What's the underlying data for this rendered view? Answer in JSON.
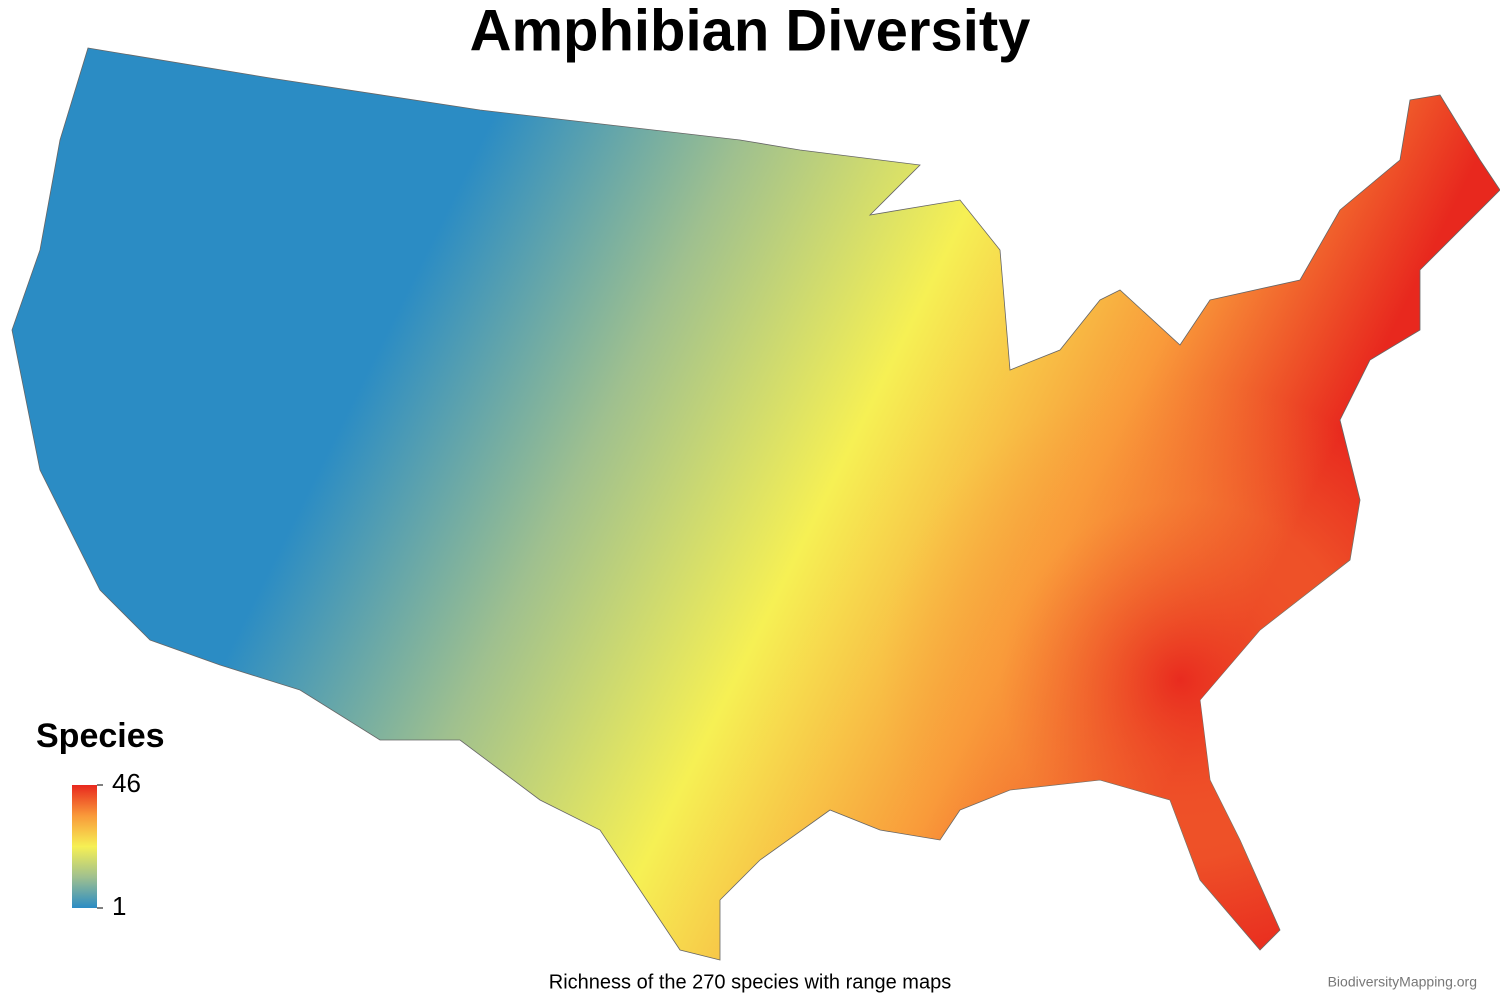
{
  "title": "Amphibian Diversity",
  "legend": {
    "title": "Species",
    "range": [
      1,
      46
    ],
    "ticks": [
      1,
      46
    ],
    "colors": [
      "#2b8cc4",
      "#9fc08f",
      "#f6f054",
      "#f99a3a",
      "#e8281e"
    ]
  },
  "caption": "Richness of the 270 species with range maps",
  "credit": "BiodiversityMapping.org"
}
